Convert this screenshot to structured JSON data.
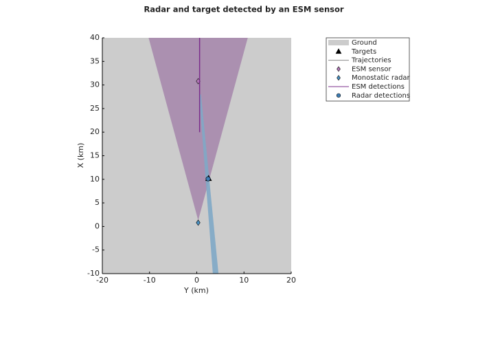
{
  "chart_data": {
    "type": "theater",
    "title": "Radar and target detected by an ESM sensor",
    "xlabel": "Y (km)",
    "ylabel": "X (km)",
    "xlim": [
      -20,
      20
    ],
    "ylim": [
      -10,
      40
    ],
    "xticks": [
      -20,
      -10,
      0,
      10,
      20
    ],
    "yticks": [
      -10,
      -5,
      0,
      5,
      10,
      15,
      20,
      25,
      30,
      35,
      40
    ],
    "coverage": [
      {
        "color": "#a78aad",
        "x": [
          0.3,
          -10.2,
          10.8
        ],
        "y": [
          1.3,
          40,
          40
        ]
      },
      {
        "color": "#7fa9c6",
        "x": [
          0.5,
          0.9,
          4.6,
          3.4
        ],
        "y": [
          28,
          28,
          -10,
          -10
        ]
      }
    ],
    "series": [
      {
        "name": "Ground",
        "kind": "patch",
        "color": "#cccccc"
      },
      {
        "name": "Targets",
        "kind": "triangle",
        "color": "#000000",
        "x": [
          2.5
        ],
        "y": [
          10.2
        ]
      },
      {
        "name": "Trajectories",
        "kind": "line",
        "color": "#888888"
      },
      {
        "name": "ESM sensor",
        "kind": "diamond",
        "color": "#b47ab8",
        "x": [
          0.3
        ],
        "y": [
          30.8
        ]
      },
      {
        "name": "Monostatic radar",
        "kind": "diamond",
        "color": "#4a92c4",
        "x": [
          0.3
        ],
        "y": [
          0.8
        ]
      },
      {
        "name": "ESM detections",
        "kind": "line",
        "color": "#7b2d8b",
        "x": [
          0.6,
          0.6
        ],
        "y": [
          40,
          20
        ]
      },
      {
        "name": "Radar detections",
        "kind": "circle",
        "color": "#3d7db5",
        "x": [
          2.4
        ],
        "y": [
          10.1
        ]
      }
    ]
  }
}
